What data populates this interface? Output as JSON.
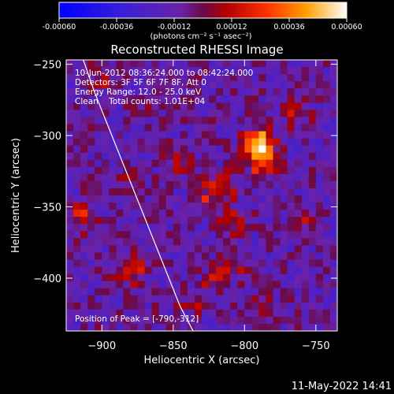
{
  "colorbar": {
    "min": -0.0006,
    "max": 0.0006,
    "ticks": [
      "-0.00060",
      "-0.00036",
      "-0.00012",
      "0.00012",
      "0.00036",
      "0.00060"
    ],
    "units_label": "(photons cm⁻² s⁻¹ asec⁻²)"
  },
  "annotations": {
    "line1": "10-Jun-2012 08:36:24.000 to 08:42:24.000",
    "line2": "Detectors: 3F 5F 6F 7F 8F, Att 0",
    "line3": "Energy Range: 12.0 - 25.0 keV",
    "line4": "Clean    Total counts: 1.01E+04",
    "peak": "Position of Peak = [-790,-312]"
  },
  "timestamp": "11-May-2022 14:41",
  "chart_data": {
    "type": "heatmap",
    "title": "Reconstructed RHESSI Image",
    "xlabel": "Heliocentric X (arcsec)",
    "ylabel": "Heliocentric Y (arcsec)",
    "xlim": [
      -925,
      -735
    ],
    "ylim": [
      -437,
      -247
    ],
    "xticks": [
      -900,
      -850,
      -800,
      -750
    ],
    "yticks": [
      -250,
      -300,
      -350,
      -400
    ],
    "xtick_labels": [
      "−900",
      "−850",
      "−800",
      "−750"
    ],
    "ytick_labels": [
      "−250",
      "−300",
      "−350",
      "−400"
    ],
    "peak_position": [
      -790,
      -312
    ],
    "limb_curve": {
      "x": [
        -913,
        -905,
        -895,
        -885,
        -875,
        -865,
        -855,
        -845,
        -836
      ],
      "y": [
        -247,
        -270,
        -295,
        -320,
        -345,
        -370,
        -395,
        -420,
        -437
      ]
    },
    "sources": [
      {
        "x": -790,
        "y": -305,
        "intensity": 0.0006
      },
      {
        "x": -787,
        "y": -318,
        "intensity": 0.00045
      },
      {
        "x": -815,
        "y": -337,
        "intensity": 0.0003
      },
      {
        "x": -830,
        "y": -345,
        "intensity": 0.00022
      },
      {
        "x": -810,
        "y": -360,
        "intensity": 0.0002
      },
      {
        "x": -805,
        "y": -390,
        "intensity": 0.00016
      },
      {
        "x": -820,
        "y": -400,
        "intensity": 0.00018
      },
      {
        "x": -845,
        "y": -318,
        "intensity": 0.00015
      },
      {
        "x": -880,
        "y": -395,
        "intensity": 0.0003
      },
      {
        "x": -915,
        "y": -357,
        "intensity": 0.00028
      },
      {
        "x": -870,
        "y": -280,
        "intensity": 0.00014
      },
      {
        "x": -765,
        "y": -285,
        "intensity": 0.00018
      },
      {
        "x": -755,
        "y": -360,
        "intensity": 0.00016
      },
      {
        "x": -790,
        "y": -420,
        "intensity": 0.0002
      },
      {
        "x": -835,
        "y": -415,
        "intensity": 0.00014
      },
      {
        "x": -880,
        "y": -330,
        "intensity": 0.0001
      },
      {
        "x": -900,
        "y": -262,
        "intensity": 0.00012
      }
    ]
  }
}
